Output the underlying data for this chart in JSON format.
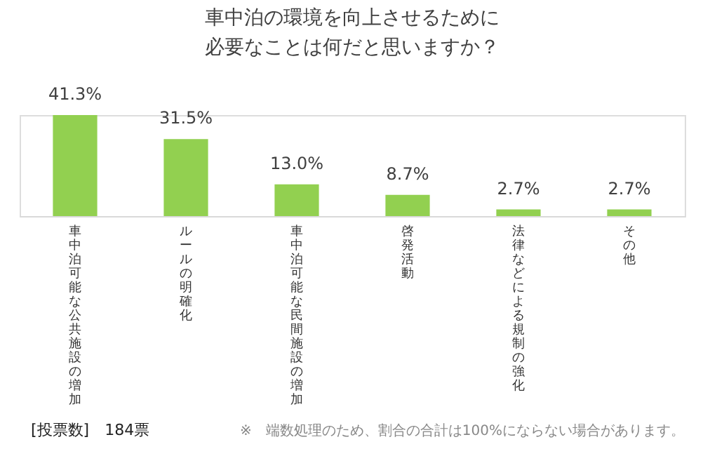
{
  "chart_data": {
    "type": "bar",
    "title": [
      "車中泊の環境を向上させるために",
      "必要なことは何だと思いますか？"
    ],
    "categories": [
      "車中泊可能な公共施設の増加",
      "ルールの明確化",
      "車中泊可能な民間施設の増加",
      "啓発活動",
      "法律などによる規制の強化",
      "その他"
    ],
    "values": [
      41.3,
      31.5,
      13.0,
      8.7,
      2.7,
      2.7
    ],
    "value_labels": [
      "41.3%",
      "31.5%",
      "13.0%",
      "8.7%",
      "2.7%",
      "2.7%"
    ],
    "color": "#92d050",
    "grid": false,
    "annotations": [
      "[投票数]　184票",
      "※　端数処理のため、割合の合計は100%にならない場合があります。"
    ]
  }
}
